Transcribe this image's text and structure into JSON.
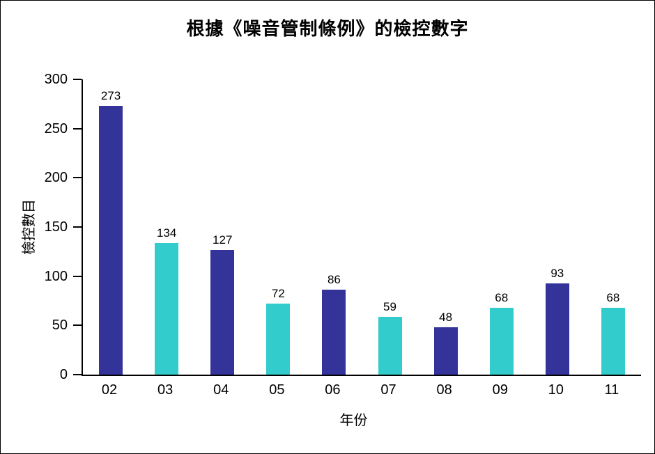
{
  "page": {
    "background": "#ffffff",
    "border_color": "#000000",
    "text_color": "#000000"
  },
  "title": "根據《噪音管制條例》的檢控數字",
  "chart_data": {
    "type": "bar",
    "title": "根據《噪音管制條例》的檢控數字",
    "categories": [
      "02",
      "03",
      "04",
      "05",
      "06",
      "07",
      "08",
      "09",
      "10",
      "11"
    ],
    "values": [
      273,
      134,
      127,
      72,
      86,
      59,
      48,
      68,
      93,
      68
    ],
    "bar_colors": [
      "#333399",
      "#33CCCC",
      "#333399",
      "#33CCCC",
      "#333399",
      "#33CCCC",
      "#333399",
      "#33CCCC",
      "#333399",
      "#33CCCC"
    ],
    "xlabel": "年份",
    "ylabel": "檢控數目",
    "ylim": [
      0,
      300
    ],
    "y_ticks": [
      0,
      50,
      100,
      150,
      200,
      250,
      300
    ],
    "grid": "off",
    "legend": "none",
    "data_labels": true,
    "axis_color": "#000000"
  }
}
